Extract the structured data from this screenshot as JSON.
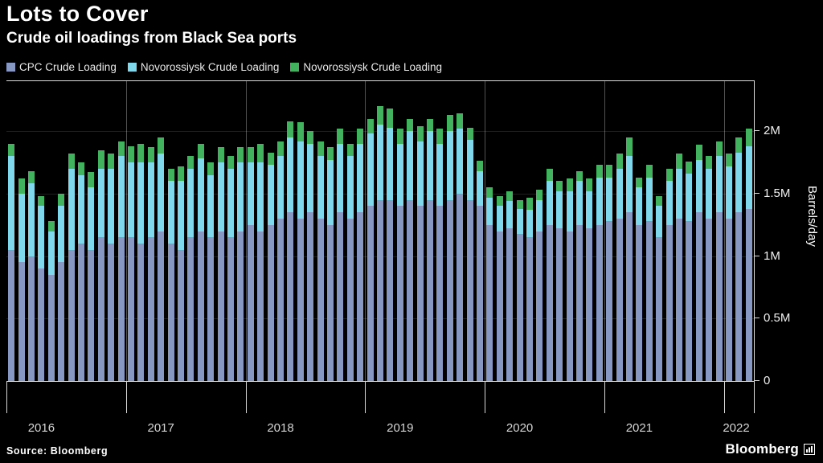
{
  "chart_data": {
    "type": "bar",
    "stacked": true,
    "title": "Lots to Cover",
    "subtitle": "Crude oil loadings from Black Sea ports",
    "ylabel": "Barrels/day",
    "value_unit": "million barrels per day",
    "ylim": [
      0,
      2.4
    ],
    "grid": "faint horizontal at ticks, vertical at year boundaries",
    "legend_position": "top-left",
    "y_ticks": [
      {
        "label": "0",
        "value": 0
      },
      {
        "label": "0.5M",
        "value": 0.5
      },
      {
        "label": "1M",
        "value": 1
      },
      {
        "label": "1.5M",
        "value": 1.5
      },
      {
        "label": "2M",
        "value": 2
      }
    ],
    "x_year_labels": [
      "2016",
      "2017",
      "2018",
      "2019",
      "2020",
      "2021",
      "2022"
    ],
    "categories": [
      "2016-01",
      "2016-02",
      "2016-03",
      "2016-04",
      "2016-05",
      "2016-06",
      "2016-07",
      "2016-08",
      "2016-09",
      "2016-10",
      "2016-11",
      "2016-12",
      "2017-01",
      "2017-02",
      "2017-03",
      "2017-04",
      "2017-05",
      "2017-06",
      "2017-07",
      "2017-08",
      "2017-09",
      "2017-10",
      "2017-11",
      "2017-12",
      "2018-01",
      "2018-02",
      "2018-03",
      "2018-04",
      "2018-05",
      "2018-06",
      "2018-07",
      "2018-08",
      "2018-09",
      "2018-10",
      "2018-11",
      "2018-12",
      "2019-01",
      "2019-02",
      "2019-03",
      "2019-04",
      "2019-05",
      "2019-06",
      "2019-07",
      "2019-08",
      "2019-09",
      "2019-10",
      "2019-11",
      "2019-12",
      "2020-01",
      "2020-02",
      "2020-03",
      "2020-04",
      "2020-05",
      "2020-06",
      "2020-07",
      "2020-08",
      "2020-09",
      "2020-10",
      "2020-11",
      "2020-12",
      "2021-01",
      "2021-02",
      "2021-03",
      "2021-04",
      "2021-05",
      "2021-06",
      "2021-07",
      "2021-08",
      "2021-09",
      "2021-10",
      "2021-11",
      "2021-12",
      "2022-01",
      "2022-02",
      "2022-03"
    ],
    "series": [
      {
        "name": "CPC Crude Loading",
        "color": "#8799c2",
        "values": [
          1.05,
          0.95,
          1.0,
          0.9,
          0.85,
          0.95,
          1.05,
          1.1,
          1.05,
          1.15,
          1.1,
          1.15,
          1.15,
          1.1,
          1.15,
          1.2,
          1.1,
          1.05,
          1.15,
          1.2,
          1.15,
          1.2,
          1.15,
          1.2,
          1.25,
          1.2,
          1.25,
          1.3,
          1.35,
          1.3,
          1.35,
          1.3,
          1.25,
          1.35,
          1.3,
          1.35,
          1.4,
          1.45,
          1.45,
          1.4,
          1.45,
          1.4,
          1.45,
          1.4,
          1.45,
          1.5,
          1.45,
          1.4,
          1.25,
          1.2,
          1.22,
          1.18,
          1.15,
          1.2,
          1.25,
          1.22,
          1.2,
          1.25,
          1.22,
          1.25,
          1.28,
          1.3,
          1.35,
          1.25,
          1.28,
          1.15,
          1.25,
          1.3,
          1.28,
          1.35,
          1.3,
          1.35,
          1.3,
          1.35,
          1.38
        ]
      },
      {
        "name": "Novorossiysk Crude Loading",
        "color": "#7fd8ec",
        "values": [
          0.75,
          0.55,
          0.58,
          0.5,
          0.35,
          0.45,
          0.65,
          0.55,
          0.5,
          0.55,
          0.6,
          0.65,
          0.6,
          0.65,
          0.6,
          0.62,
          0.5,
          0.55,
          0.55,
          0.58,
          0.5,
          0.55,
          0.55,
          0.55,
          0.5,
          0.55,
          0.48,
          0.5,
          0.6,
          0.62,
          0.55,
          0.5,
          0.52,
          0.55,
          0.5,
          0.55,
          0.58,
          0.6,
          0.58,
          0.5,
          0.55,
          0.52,
          0.55,
          0.5,
          0.55,
          0.52,
          0.48,
          0.28,
          0.22,
          0.2,
          0.22,
          0.2,
          0.22,
          0.25,
          0.35,
          0.3,
          0.32,
          0.35,
          0.3,
          0.38,
          0.35,
          0.4,
          0.45,
          0.3,
          0.35,
          0.25,
          0.35,
          0.4,
          0.38,
          0.42,
          0.4,
          0.45,
          0.42,
          0.48,
          0.5
        ]
      },
      {
        "name": "Novorossiysk Crude Loading",
        "color": "#42b25f",
        "values": [
          0.1,
          0.12,
          0.1,
          0.08,
          0.08,
          0.1,
          0.12,
          0.1,
          0.12,
          0.15,
          0.12,
          0.12,
          0.13,
          0.15,
          0.12,
          0.13,
          0.1,
          0.12,
          0.1,
          0.12,
          0.1,
          0.12,
          0.1,
          0.12,
          0.12,
          0.15,
          0.1,
          0.12,
          0.13,
          0.15,
          0.1,
          0.12,
          0.1,
          0.12,
          0.1,
          0.12,
          0.12,
          0.15,
          0.15,
          0.12,
          0.1,
          0.12,
          0.1,
          0.12,
          0.13,
          0.12,
          0.1,
          0.08,
          0.08,
          0.08,
          0.08,
          0.07,
          0.1,
          0.08,
          0.1,
          0.08,
          0.1,
          0.08,
          0.1,
          0.1,
          0.1,
          0.12,
          0.15,
          0.08,
          0.1,
          0.08,
          0.1,
          0.12,
          0.1,
          0.12,
          0.1,
          0.12,
          0.1,
          0.12,
          0.14
        ]
      }
    ]
  },
  "footer": {
    "source": "Source: Bloomberg",
    "brand": "Bloomberg"
  }
}
